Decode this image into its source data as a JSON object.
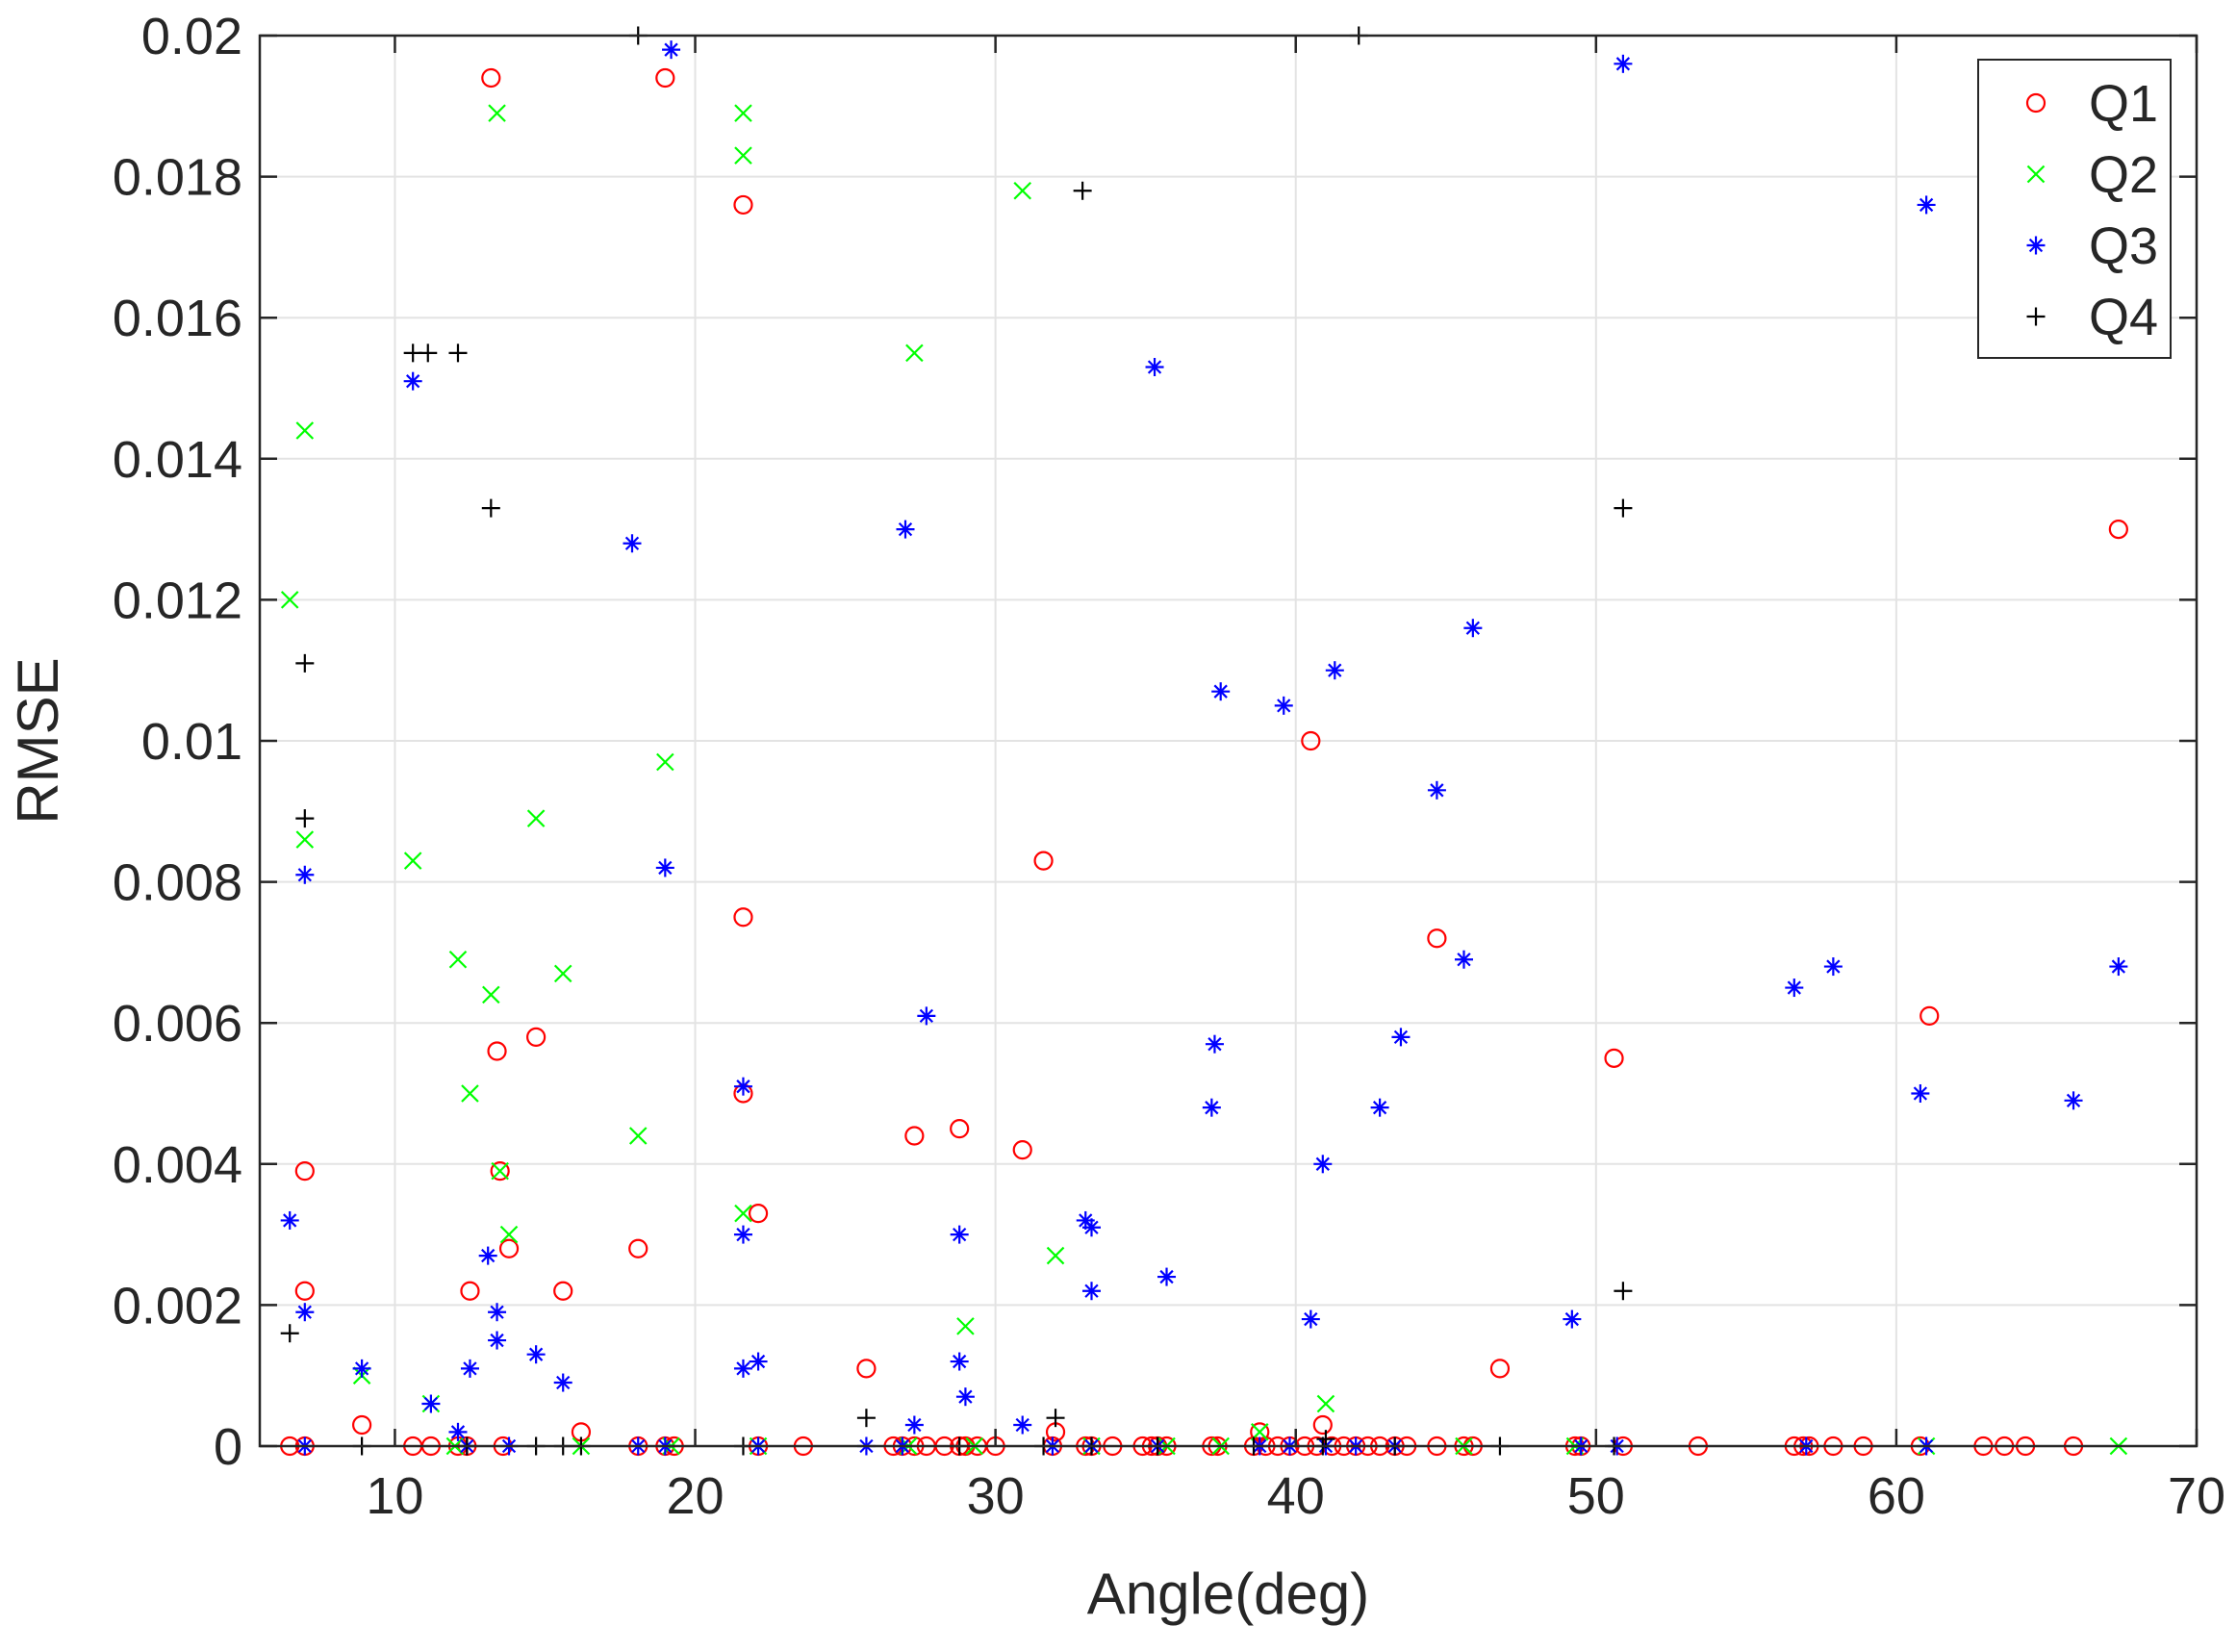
{
  "chart_data": {
    "type": "scatter",
    "title": "",
    "xlabel": "Angle(deg)",
    "ylabel": "RMSE",
    "xlim": [
      5.5,
      70
    ],
    "ylim": [
      0,
      0.02
    ],
    "grid": true,
    "legend_position": "top-right",
    "x_ticks": [
      10,
      20,
      30,
      40,
      50,
      60,
      70
    ],
    "x_tick_labels": [
      "10",
      "20",
      "30",
      "40",
      "50",
      "60",
      "70"
    ],
    "y_ticks": [
      0,
      0.002,
      0.004,
      0.006,
      0.008,
      0.01,
      0.012,
      0.014,
      0.016,
      0.018,
      0.02
    ],
    "y_tick_labels": [
      "0",
      "0.002",
      "0.004",
      "0.006",
      "0.008",
      "0.01",
      "0.012",
      "0.014",
      "0.016",
      "0.018",
      "0.02"
    ],
    "series": [
      {
        "name": "Q1",
        "marker": "circle",
        "color": "#ff0000",
        "points": [
          [
            13.2,
            0.0194
          ],
          [
            19.0,
            0.0194
          ],
          [
            21.6,
            0.0176
          ],
          [
            67.4,
            0.013
          ],
          [
            40.5,
            0.01
          ],
          [
            31.6,
            0.0083
          ],
          [
            21.6,
            0.0075
          ],
          [
            44.7,
            0.0072
          ],
          [
            61.1,
            0.0061
          ],
          [
            14.7,
            0.0058
          ],
          [
            13.4,
            0.0056
          ],
          [
            50.6,
            0.0055
          ],
          [
            21.6,
            0.005
          ],
          [
            28.8,
            0.0045
          ],
          [
            27.3,
            0.0044
          ],
          [
            30.9,
            0.0042
          ],
          [
            7.0,
            0.0039
          ],
          [
            13.5,
            0.0039
          ],
          [
            22.1,
            0.0033
          ],
          [
            13.8,
            0.0028
          ],
          [
            18.1,
            0.0028
          ],
          [
            7.0,
            0.0022
          ],
          [
            12.5,
            0.0022
          ],
          [
            15.6,
            0.0022
          ],
          [
            25.7,
            0.0011
          ],
          [
            46.8,
            0.0011
          ],
          [
            8.9,
            0.0003
          ],
          [
            16.2,
            0.0002
          ],
          [
            32.0,
            0.0002
          ],
          [
            38.8,
            0.0002
          ],
          [
            40.9,
            0.0003
          ],
          [
            6.5,
            0
          ],
          [
            7.0,
            0
          ],
          [
            10.6,
            0
          ],
          [
            11.2,
            0
          ],
          [
            12.1,
            0
          ],
          [
            12.4,
            0
          ],
          [
            13.6,
            0
          ],
          [
            18.1,
            0
          ],
          [
            19.0,
            0
          ],
          [
            19.3,
            0
          ],
          [
            22.1,
            0
          ],
          [
            23.6,
            0
          ],
          [
            26.6,
            0
          ],
          [
            26.9,
            0
          ],
          [
            27.3,
            0
          ],
          [
            27.7,
            0
          ],
          [
            28.3,
            0
          ],
          [
            28.8,
            0
          ],
          [
            29.0,
            0
          ],
          [
            29.4,
            0
          ],
          [
            30.0,
            0
          ],
          [
            31.9,
            0
          ],
          [
            33.0,
            0
          ],
          [
            33.2,
            0
          ],
          [
            33.9,
            0
          ],
          [
            34.9,
            0
          ],
          [
            35.2,
            0
          ],
          [
            35.4,
            0
          ],
          [
            35.7,
            0
          ],
          [
            37.2,
            0
          ],
          [
            37.4,
            0
          ],
          [
            38.6,
            0
          ],
          [
            39.0,
            0
          ],
          [
            39.4,
            0
          ],
          [
            39.8,
            0
          ],
          [
            40.3,
            0
          ],
          [
            40.7,
            0
          ],
          [
            41.2,
            0
          ],
          [
            41.6,
            0
          ],
          [
            42.0,
            0
          ],
          [
            42.4,
            0
          ],
          [
            42.8,
            0
          ],
          [
            43.3,
            0
          ],
          [
            43.7,
            0
          ],
          [
            44.7,
            0
          ],
          [
            45.6,
            0
          ],
          [
            45.9,
            0
          ],
          [
            49.3,
            0
          ],
          [
            49.5,
            0
          ],
          [
            50.9,
            0
          ],
          [
            53.4,
            0
          ],
          [
            56.6,
            0
          ],
          [
            56.9,
            0
          ],
          [
            57.1,
            0
          ],
          [
            57.9,
            0
          ],
          [
            58.9,
            0
          ],
          [
            60.8,
            0
          ],
          [
            62.9,
            0
          ],
          [
            63.6,
            0
          ],
          [
            64.3,
            0
          ],
          [
            65.9,
            0
          ]
        ]
      },
      {
        "name": "Q2",
        "marker": "x",
        "color": "#00ff00",
        "points": [
          [
            13.4,
            0.0189
          ],
          [
            21.6,
            0.0189
          ],
          [
            21.6,
            0.0183
          ],
          [
            30.9,
            0.0178
          ],
          [
            27.3,
            0.0155
          ],
          [
            7.0,
            0.0144
          ],
          [
            6.5,
            0.012
          ],
          [
            19.0,
            0.0097
          ],
          [
            14.7,
            0.0089
          ],
          [
            7.0,
            0.0086
          ],
          [
            10.6,
            0.0083
          ],
          [
            12.1,
            0.0069
          ],
          [
            15.6,
            0.0067
          ],
          [
            13.2,
            0.0064
          ],
          [
            12.5,
            0.005
          ],
          [
            18.1,
            0.0044
          ],
          [
            13.5,
            0.0039
          ],
          [
            21.6,
            0.0033
          ],
          [
            13.8,
            0.003
          ],
          [
            32.0,
            0.0027
          ],
          [
            29.0,
            0.0017
          ],
          [
            8.9,
            0.001
          ],
          [
            41.0,
            0.0006
          ],
          [
            11.2,
            0.0006
          ],
          [
            38.8,
            0.0002
          ],
          [
            12.0,
            0
          ],
          [
            16.2,
            0
          ],
          [
            19.2,
            0
          ],
          [
            22.1,
            0
          ],
          [
            27.1,
            0
          ],
          [
            29.3,
            0
          ],
          [
            33.2,
            0
          ],
          [
            35.7,
            0
          ],
          [
            37.5,
            0
          ],
          [
            45.6,
            0
          ],
          [
            49.3,
            0
          ],
          [
            61.0,
            0
          ],
          [
            67.4,
            0
          ]
        ]
      },
      {
        "name": "Q3",
        "marker": "star",
        "color": "#0000ff",
        "points": [
          [
            19.2,
            0.0198
          ],
          [
            50.9,
            0.0196
          ],
          [
            61.0,
            0.0176
          ],
          [
            35.3,
            0.0153
          ],
          [
            10.6,
            0.0151
          ],
          [
            27.0,
            0.013
          ],
          [
            17.9,
            0.0128
          ],
          [
            45.9,
            0.0116
          ],
          [
            41.3,
            0.011
          ],
          [
            37.5,
            0.0107
          ],
          [
            39.6,
            0.0105
          ],
          [
            44.7,
            0.0093
          ],
          [
            19.0,
            0.0082
          ],
          [
            7.0,
            0.0081
          ],
          [
            45.6,
            0.0069
          ],
          [
            57.9,
            0.0068
          ],
          [
            67.4,
            0.0068
          ],
          [
            56.6,
            0.0065
          ],
          [
            27.7,
            0.0061
          ],
          [
            43.5,
            0.0058
          ],
          [
            37.3,
            0.0057
          ],
          [
            21.6,
            0.0051
          ],
          [
            60.8,
            0.005
          ],
          [
            37.2,
            0.0048
          ],
          [
            42.8,
            0.0048
          ],
          [
            65.9,
            0.0049
          ],
          [
            40.9,
            0.004
          ],
          [
            6.5,
            0.0032
          ],
          [
            33.2,
            0.0031
          ],
          [
            33.0,
            0.0032
          ],
          [
            21.6,
            0.003
          ],
          [
            28.8,
            0.003
          ],
          [
            13.1,
            0.0027
          ],
          [
            35.7,
            0.0024
          ],
          [
            33.2,
            0.0022
          ],
          [
            7.0,
            0.0019
          ],
          [
            13.4,
            0.0019
          ],
          [
            40.5,
            0.0018
          ],
          [
            49.2,
            0.0018
          ],
          [
            13.4,
            0.0015
          ],
          [
            14.7,
            0.0013
          ],
          [
            22.1,
            0.0012
          ],
          [
            28.8,
            0.0012
          ],
          [
            8.9,
            0.0011
          ],
          [
            12.5,
            0.0011
          ],
          [
            21.6,
            0.0011
          ],
          [
            15.6,
            0.0009
          ],
          [
            29.0,
            0.0007
          ],
          [
            11.2,
            0.0006
          ],
          [
            27.3,
            0.0003
          ],
          [
            30.9,
            0.0003
          ],
          [
            12.1,
            0.0002
          ],
          [
            7.0,
            0
          ],
          [
            12.4,
            0
          ],
          [
            13.8,
            0
          ],
          [
            18.1,
            0
          ],
          [
            19.0,
            0
          ],
          [
            22.1,
            0
          ],
          [
            25.7,
            0
          ],
          [
            26.9,
            0
          ],
          [
            31.9,
            0
          ],
          [
            33.2,
            0
          ],
          [
            35.4,
            0
          ],
          [
            38.8,
            0
          ],
          [
            39.8,
            0
          ],
          [
            41.0,
            0
          ],
          [
            42.0,
            0
          ],
          [
            43.3,
            0
          ],
          [
            49.5,
            0
          ],
          [
            50.7,
            0
          ],
          [
            57.0,
            0
          ],
          [
            61.0,
            0
          ]
        ]
      },
      {
        "name": "Q4",
        "marker": "plus",
        "color": "#000000",
        "points": [
          [
            18.1,
            0.02
          ],
          [
            42.1,
            0.02
          ],
          [
            32.9,
            0.0178
          ],
          [
            10.6,
            0.0155
          ],
          [
            11.1,
            0.0155
          ],
          [
            12.1,
            0.0155
          ],
          [
            13.2,
            0.0133
          ],
          [
            50.9,
            0.0133
          ],
          [
            7.0,
            0.0111
          ],
          [
            7.0,
            0.0089
          ],
          [
            50.9,
            0.0022
          ],
          [
            6.5,
            0.0016
          ],
          [
            25.7,
            0.0004
          ],
          [
            32.0,
            0.0004
          ],
          [
            41.0,
            0.0001
          ],
          [
            8.9,
            0
          ],
          [
            12.4,
            0
          ],
          [
            14.7,
            0
          ],
          [
            15.6,
            0
          ],
          [
            16.2,
            0
          ],
          [
            21.6,
            0
          ],
          [
            28.8,
            0
          ],
          [
            31.6,
            0
          ],
          [
            33.2,
            0
          ],
          [
            35.4,
            0
          ],
          [
            38.6,
            0
          ],
          [
            40.9,
            0
          ],
          [
            43.3,
            0
          ],
          [
            46.8,
            0
          ],
          [
            50.6,
            0
          ]
        ]
      }
    ]
  }
}
